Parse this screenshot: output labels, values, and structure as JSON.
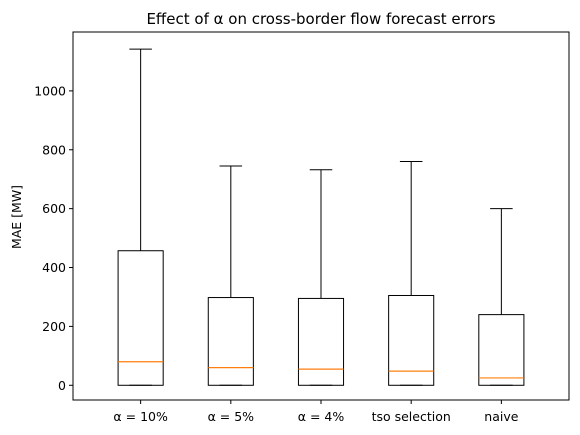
{
  "chart_data": {
    "type": "box",
    "title": "Effect of α on cross-border flow forecast errors",
    "xlabel": "",
    "ylabel": "MAE [MW]",
    "ylim": [
      -50,
      1200
    ],
    "yticks": [
      0,
      200,
      400,
      600,
      800,
      1000
    ],
    "grid": false,
    "categories": [
      "α = 10%",
      "α = 5%",
      "α = 4%",
      "tso selection",
      "naive"
    ],
    "boxes": [
      {
        "whislo": 0,
        "q1": 0,
        "med": 80,
        "q3": 457,
        "whishi": 1142
      },
      {
        "whislo": 0,
        "q1": 0,
        "med": 60,
        "q3": 298,
        "whishi": 745
      },
      {
        "whislo": 0,
        "q1": 0,
        "med": 55,
        "q3": 295,
        "whishi": 732
      },
      {
        "whislo": 0,
        "q1": 0,
        "med": 48,
        "q3": 305,
        "whishi": 760
      },
      {
        "whislo": 0,
        "q1": 0,
        "med": 25,
        "q3": 240,
        "whishi": 600
      }
    ],
    "colors": {
      "box": "#000000",
      "median": "#ff7f0e",
      "background": "#ffffff"
    }
  }
}
